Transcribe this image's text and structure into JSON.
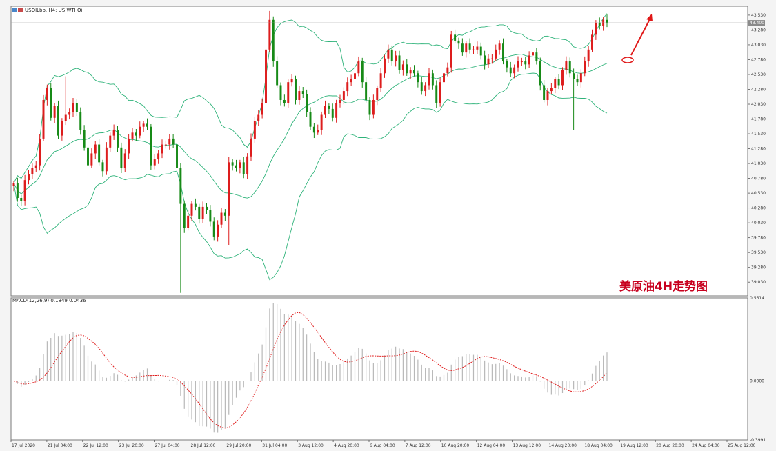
{
  "window": {
    "title": "USOILbb, H4:  US WTI Oil",
    "macd_label": "MACD(12,26,9) 0.1849 0.0436",
    "watermark": "美原油4H走势图"
  },
  "colors": {
    "bull": "#dd1d1d",
    "bear": "#178a17",
    "bands": "#2fb37a",
    "signal": "#e02020",
    "histogram": "#b8b8b8",
    "arrow": "#e01818"
  },
  "chart_data": [
    {
      "type": "candlestick",
      "panel": "price",
      "ylim": [
        38.8,
        43.68
      ],
      "y_ticks": [
        "43.530",
        "43.280",
        "43.030",
        "42.780",
        "42.530",
        "42.280",
        "42.030",
        "41.780",
        "41.530",
        "41.280",
        "41.030",
        "40.780",
        "40.530",
        "40.280",
        "40.030",
        "39.780",
        "39.530",
        "39.280",
        "39.030"
      ],
      "current_price": "43.400",
      "x_tick_labels": [
        "17 Jul 2020",
        "21 Jul 04:00",
        "22 Jul 12:00",
        "23 Jul 20:00",
        "27 Jul 04:00",
        "28 Jul 12:00",
        "29 Jul 20:00",
        "31 Jul 04:00",
        "3 Aug 12:00",
        "4 Aug 20:00",
        "6 Aug 04:00",
        "7 Aug 12:00",
        "10 Aug 20:00",
        "12 Aug 04:00",
        "13 Aug 12:00",
        "14 Aug 20:00",
        "18 Aug 04:00",
        "19 Aug 12:00",
        "20 Aug 20:00",
        "24 Aug 04:00",
        "25 Aug 12:00"
      ],
      "close": [
        40.7,
        40.45,
        40.4,
        40.75,
        40.85,
        40.95,
        41.0,
        41.45,
        42.1,
        42.3,
        41.8,
        42.0,
        41.5,
        41.75,
        41.85,
        41.9,
        42.05,
        41.9,
        41.6,
        41.3,
        41.0,
        41.2,
        41.35,
        41.05,
        40.9,
        41.3,
        41.5,
        41.6,
        41.3,
        40.95,
        41.2,
        41.45,
        41.55,
        41.5,
        41.65,
        41.7,
        41.65,
        41.0,
        41.1,
        41.2,
        41.35,
        41.35,
        41.45,
        41.35,
        40.95,
        40.35,
        39.95,
        40.15,
        40.35,
        40.3,
        40.1,
        40.3,
        40.25,
        40.05,
        39.8,
        40.0,
        40.2,
        40.15,
        41.05,
        41.0,
        40.95,
        41.05,
        40.85,
        41.15,
        41.45,
        41.75,
        41.85,
        42.05,
        42.95,
        43.45,
        42.75,
        42.35,
        42.1,
        42.05,
        42.4,
        42.45,
        42.1,
        42.25,
        42.2,
        41.9,
        41.65,
        41.55,
        41.6,
        41.85,
        42.0,
        41.95,
        41.8,
        42.05,
        42.1,
        42.25,
        42.4,
        42.45,
        42.55,
        42.75,
        42.4,
        42.1,
        41.85,
        42.1,
        42.3,
        42.55,
        42.8,
        42.95,
        42.75,
        42.85,
        42.6,
        42.7,
        42.55,
        42.6,
        42.55,
        42.4,
        42.25,
        42.35,
        42.55,
        42.35,
        42.05,
        42.4,
        42.55,
        42.65,
        43.2,
        43.1,
        43.05,
        42.9,
        43.05,
        42.95,
        42.95,
        43.0,
        42.85,
        42.7,
        42.8,
        42.8,
        42.95,
        43.05,
        42.75,
        42.65,
        42.55,
        42.65,
        42.75,
        42.75,
        42.7,
        42.85,
        42.9,
        42.75,
        42.35,
        42.1,
        42.25,
        42.3,
        42.45,
        42.35,
        42.6,
        42.75,
        42.55,
        42.45,
        42.4,
        42.55,
        42.75,
        42.95,
        43.2,
        43.4,
        43.35,
        43.45,
        43.4
      ]
    },
    {
      "type": "macd",
      "panel": "macd",
      "ylim": [
        -0.3991,
        0.5614
      ],
      "y_ticks": [
        "0.5614",
        "0.0000",
        "-0.3991"
      ]
    }
  ]
}
